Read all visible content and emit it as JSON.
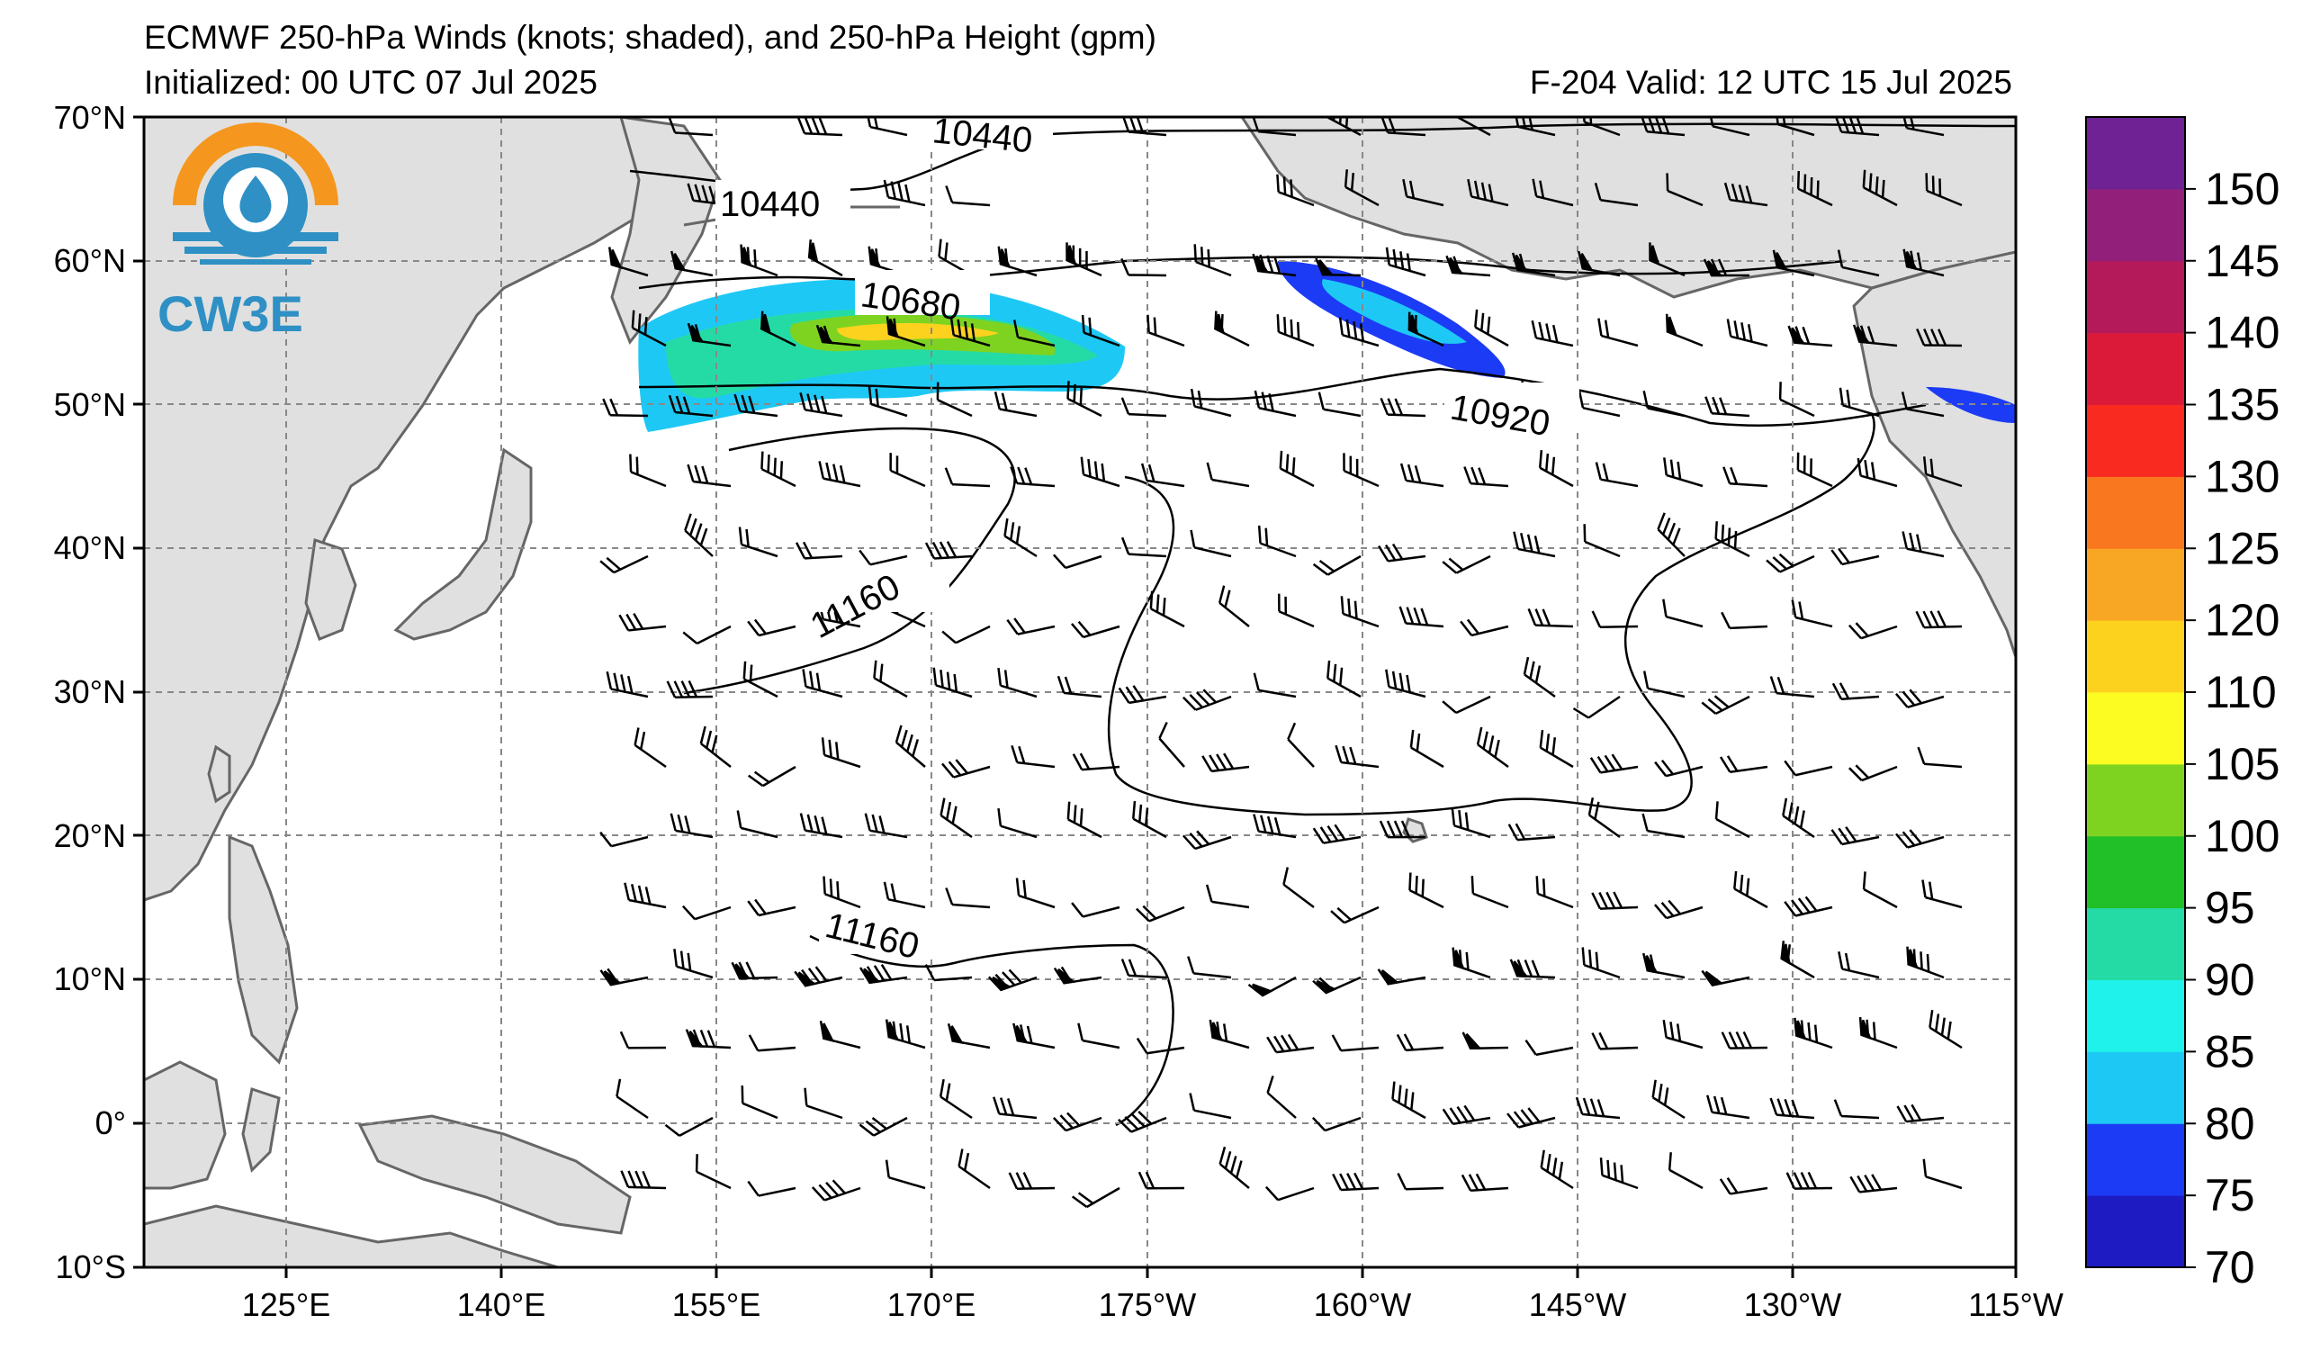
{
  "header": {
    "title": "ECMWF 250-hPa Winds (knots; shaded), and 250-hPa Height (gpm)",
    "initialized": "Initialized: 00 UTC 07 Jul 2025",
    "valid": "F-204  Valid: 12 UTC 15 Jul 2025"
  },
  "logo": {
    "text": "CW3E",
    "colors": {
      "orange": "#F5961E",
      "blue": "#2E90C4"
    }
  },
  "map": {
    "lat_labels": [
      "70°N",
      "60°N",
      "50°N",
      "40°N",
      "30°N",
      "20°N",
      "10°N",
      "0°",
      "10°S"
    ],
    "lon_labels": [
      "125°E",
      "140°E",
      "155°E",
      "170°E",
      "175°W",
      "160°W",
      "145°W",
      "130°W",
      "115°W"
    ],
    "contour_labels": [
      "10440",
      "10440",
      "10680",
      "10920",
      "11160",
      "11160"
    ],
    "land_color": "#E0E0E0",
    "coast_color": "#666666",
    "grid_style": "dashed gray"
  },
  "colorbar": {
    "labels": [
      "150",
      "145",
      "140",
      "135",
      "130",
      "125",
      "120",
      "110",
      "105",
      "100",
      "95",
      "90",
      "85",
      "80",
      "75",
      "70"
    ],
    "colors": [
      "#1F1BC2",
      "#1C3BF5",
      "#1EC8F5",
      "#1EF2EA",
      "#25DBA5",
      "#21BF28",
      "#7ED321",
      "#FDFC22",
      "#FDD21F",
      "#F8A724",
      "#F9771F",
      "#F92A1F",
      "#DB1A3A",
      "#B41A5A",
      "#92207B",
      "#6E2294"
    ]
  }
}
